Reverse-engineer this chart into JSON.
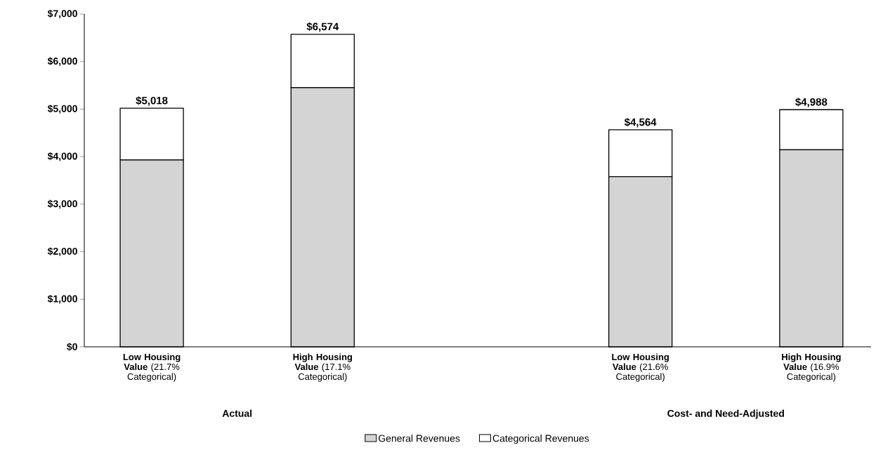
{
  "chart_data": {
    "type": "bar",
    "stacked": true,
    "categories": [
      "**Low Housing Value** (21.7% Categorical)",
      "**High Housing Value** (17.1% Categorical)",
      "**Low Housing Value** (21.6% Categorical)",
      "**High Housing Value** (16.9% Categorical)"
    ],
    "series": [
      {
        "name": "General Revenues",
        "color": "#d4d4d4",
        "values": [
          3929,
          5450,
          3578,
          4145
        ]
      },
      {
        "name": "Categorical Revenues",
        "color": "#ffffff",
        "values": [
          1089,
          1124,
          986,
          843
        ]
      }
    ],
    "totals": [
      "$5,018",
      "$6,574",
      "$4,564",
      "$4,988"
    ],
    "annotations": [
      "Actual",
      "Cost- and Need-Adjusted"
    ],
    "ylim": [
      0,
      7000
    ],
    "yticks": [
      {
        "value": 0,
        "label": "$0"
      },
      {
        "value": 1000,
        "label": "$1,000"
      },
      {
        "value": 2000,
        "label": "$2,000"
      },
      {
        "value": 3000,
        "label": "$3,000"
      },
      {
        "value": 4000,
        "label": "$4,000"
      },
      {
        "value": 5000,
        "label": "$5,000"
      },
      {
        "value": 6000,
        "label": "$6,000"
      },
      {
        "value": 7000,
        "label": "$7,000"
      }
    ],
    "grid": false,
    "legend": "bottom"
  }
}
